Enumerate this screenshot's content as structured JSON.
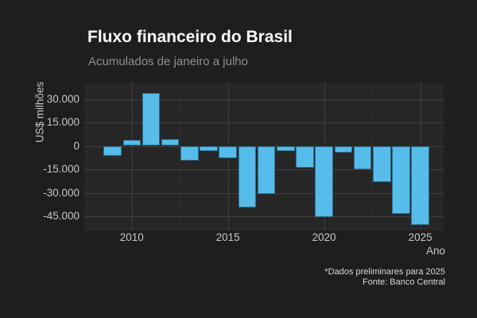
{
  "header": {
    "title": "Fluxo financeiro do Brasil",
    "subtitle": "Acumulados de janeiro a julho"
  },
  "footer": {
    "caption_line1": "*Dados preliminares para 2025",
    "caption_line2": "Fonte: Banco Central"
  },
  "chart_data": {
    "type": "bar",
    "title": "Fluxo financeiro do Brasil",
    "subtitle": "Acumulados de janeiro a julho",
    "xlabel": "Ano",
    "ylabel": "US$ milhões",
    "caption": [
      "*Dados preliminares para 2025",
      "Fonte: Banco Central"
    ],
    "categories": [
      2009,
      2010,
      2011,
      2012,
      2013,
      2014,
      2015,
      2016,
      2017,
      2018,
      2019,
      2020,
      2021,
      2022,
      2023,
      2024,
      2025
    ],
    "values": [
      -6500,
      4000,
      34000,
      4200,
      -9400,
      -3500,
      -7800,
      -39500,
      -30500,
      -3500,
      -14100,
      -45400,
      -4500,
      -14900,
      -23000,
      -43700,
      -50500
    ],
    "series_name": "Fluxo financeiro acumulado janeiro-julho (US$ milhões)",
    "ylim": [
      -54000,
      40500
    ],
    "yticks": [
      {
        "value": 30000,
        "label": "30.000"
      },
      {
        "value": 15000,
        "label": "15.000"
      },
      {
        "value": 0,
        "label": "0"
      },
      {
        "value": -15000,
        "label": "-15.000"
      },
      {
        "value": -30000,
        "label": "-30.000"
      },
      {
        "value": -45000,
        "label": "-45.000"
      }
    ],
    "xticks": [
      {
        "value": 2010,
        "label": "2010"
      },
      {
        "value": 2015,
        "label": "2015"
      },
      {
        "value": 2020,
        "label": "2020"
      },
      {
        "value": 2025,
        "label": "2025"
      }
    ],
    "y_minor_gridlines": [
      37500,
      22500,
      7500,
      -7500,
      -22500,
      -37500,
      -52500
    ],
    "x_minor_gridlines": [
      2012.5,
      2017.5,
      2022.5
    ],
    "grid": "major and minor gridlines, horizontal and vertical",
    "legend": "none",
    "colors": {
      "bar": "#56BCEA",
      "background": "#1e1e1e",
      "panel_background": "#262626",
      "grid_major": "#3f3f3f",
      "grid_minor": "#2d2d2d",
      "title_text": "#fafafa",
      "subtitle_text": "#8f8f8f",
      "tick_text": "#c6c6c6"
    }
  }
}
